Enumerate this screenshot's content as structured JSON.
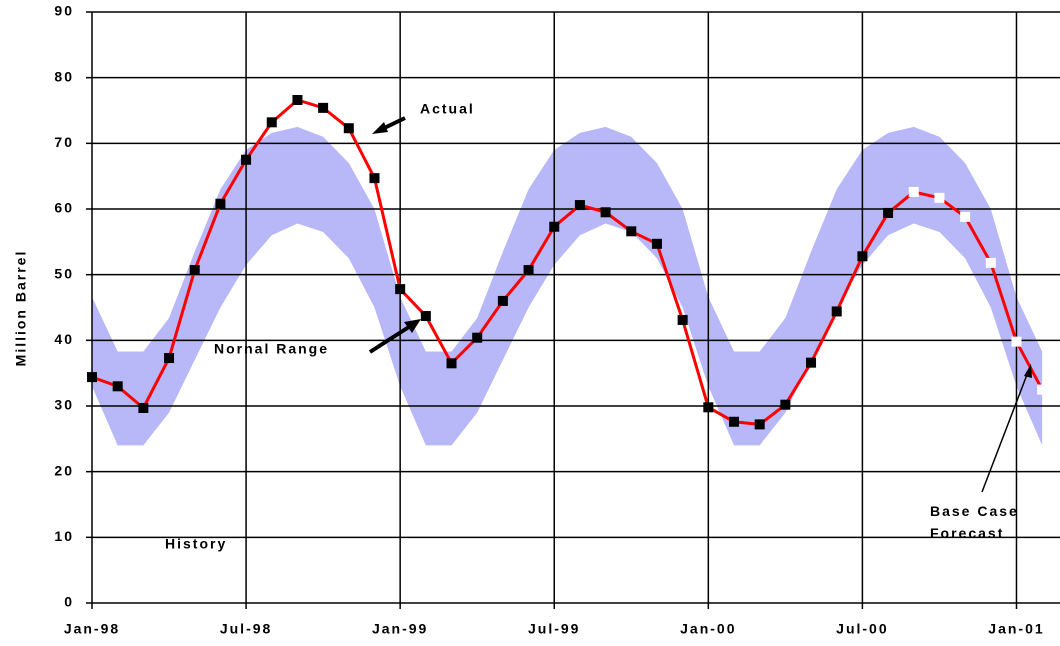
{
  "chart_data": {
    "type": "line",
    "y_label": "Million Barrel",
    "categories": [
      "Jan-98",
      null,
      null,
      null,
      null,
      null,
      "Jul-98",
      null,
      null,
      null,
      null,
      null,
      "Jan-99",
      null,
      null,
      null,
      null,
      null,
      "Jul-99",
      null,
      null,
      null,
      null,
      null,
      "Jan-00",
      null,
      null,
      null,
      null,
      null,
      "Jul-00",
      null,
      null,
      null,
      null,
      null,
      "Jan-01",
      null
    ],
    "band": {
      "name": "Nornal Range",
      "color": "#b8b8f8",
      "upper": [
        46.6,
        38.3,
        38.3,
        43.4,
        53.5,
        63,
        69,
        71.6,
        72.5,
        71,
        67,
        60,
        46.6,
        38.3,
        38.3,
        43.4,
        53.5,
        63,
        69,
        71.6,
        72.5,
        71,
        67,
        60,
        46.6,
        38.3,
        38.3,
        43.4,
        53.5,
        63,
        69,
        71.6,
        72.5,
        71,
        67,
        60,
        46.6,
        38.3
      ],
      "lower": [
        33,
        24,
        24,
        29,
        37,
        45,
        51.5,
        56,
        57.8,
        56.5,
        52.5,
        45,
        33,
        24,
        24,
        29,
        37,
        45,
        51.5,
        56,
        57.8,
        56.5,
        52.5,
        45,
        33,
        24,
        24,
        29,
        37,
        45,
        51.5,
        56,
        57.8,
        56.5,
        52.5,
        45,
        33,
        24
      ]
    },
    "series": [
      {
        "name": "Actual",
        "color": "#ff0000",
        "marker_color": "#000000",
        "values": [
          34.4,
          33.0,
          29.7,
          37.3,
          50.7,
          60.8,
          67.5,
          73.2,
          76.6,
          75.4,
          72.3,
          64.7,
          47.8,
          43.7,
          36.5,
          40.4,
          46.0,
          50.7,
          57.3,
          60.6,
          59.5,
          56.6,
          54.7,
          43.1,
          29.8,
          27.6,
          27.2,
          30.2,
          36.6,
          44.4,
          52.8,
          59.4,
          null,
          null,
          null,
          null,
          null,
          null
        ]
      },
      {
        "name": "Base Case Forecast",
        "color": "#ff0000",
        "marker_color": "#ffffff",
        "values": [
          null,
          null,
          null,
          null,
          null,
          null,
          null,
          null,
          null,
          null,
          null,
          null,
          null,
          null,
          null,
          null,
          null,
          null,
          null,
          null,
          null,
          null,
          null,
          null,
          null,
          null,
          null,
          null,
          null,
          null,
          null,
          null,
          62.6,
          61.7,
          58.8,
          51.8,
          39.8,
          32.5
        ]
      }
    ],
    "annotations": [
      "History"
    ],
    "ylim": [
      0,
      90
    ],
    "yticks": [
      0,
      10,
      20,
      30,
      40,
      50,
      60,
      70,
      80,
      90
    ],
    "grid": true
  }
}
